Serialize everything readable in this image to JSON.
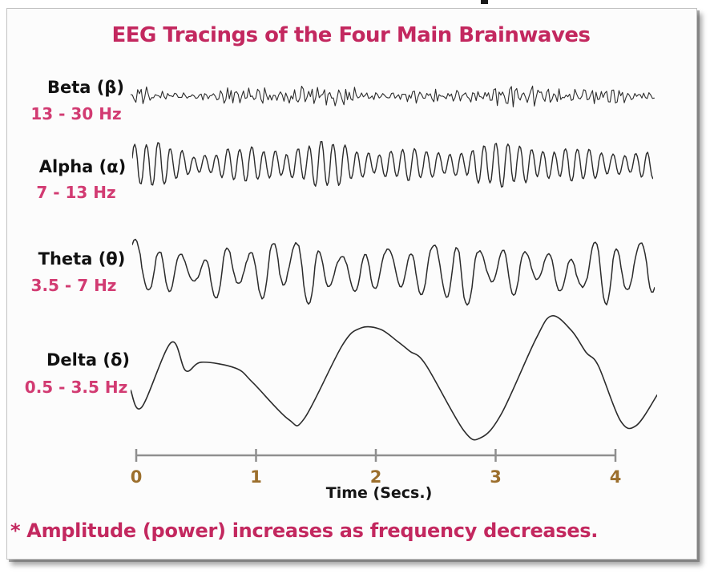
{
  "title": "EEG Tracings of the Four Main Brainwaves",
  "footnote": "* Amplitude (power) increases as frequency decreases.",
  "colors": {
    "accent_pink": "#C3285F",
    "freq_pink": "#D23B72",
    "trace_black": "#2b2b2b",
    "axis_gray": "#8f8f8f",
    "tick_number_brown": "#9C6F2D"
  },
  "chart_data": {
    "type": "line",
    "title": "EEG Tracings of the Four Main Brainwaves",
    "xlabel": "Time (Secs.)",
    "x_range_secs": [
      0,
      4.3
    ],
    "x_ticks": [
      "0",
      "1",
      "2",
      "3",
      "4"
    ],
    "x_tick_values": [
      0,
      1,
      2,
      3,
      4
    ],
    "grid": false,
    "note": "* Amplitude (power) increases as frequency decreases.",
    "series": [
      {
        "id": "beta",
        "label": "Beta (β)",
        "freq_label": "13 - 30 Hz",
        "band_hz": [
          13,
          30
        ],
        "relative_amplitude": 0.13,
        "synthesis": {
          "type": "sinusoids",
          "components": [
            {
              "f": 16.5,
              "a": 0.5,
              "p": 0.3
            },
            {
              "f": 22.8,
              "a": 0.42,
              "p": 1.7
            },
            {
              "f": 28.7,
              "a": 0.3,
              "p": 4.1
            },
            {
              "f": 13.4,
              "a": 0.32,
              "p": 2.6
            },
            {
              "f": 36.5,
              "a": 0.2,
              "p": 0.9
            }
          ],
          "noise": 0.45,
          "envelope": [
            {
              "f": 0.52,
              "a": 0.38,
              "p": 3.3
            },
            {
              "f": 1.3,
              "a": 0.28,
              "p": 0.8
            }
          ],
          "limit": 0.25
        }
      },
      {
        "id": "alpha",
        "label": "Alpha (α)",
        "freq_label": "7 - 13 Hz",
        "band_hz": [
          7,
          13
        ],
        "relative_amplitude": 0.36,
        "synthesis": {
          "type": "sinusoids",
          "components": [
            {
              "f": 10.4,
              "a": 0.82,
              "p": 0.0
            },
            {
              "f": 9.0,
              "a": 0.22,
              "p": 2.0
            },
            {
              "f": 5.1,
              "a": 0.1,
              "p": 1.1
            }
          ],
          "noise": 0.04,
          "envelope": [
            {
              "f": 0.62,
              "a": 0.26,
              "p": 1.9
            },
            {
              "f": 1.45,
              "a": 0.16,
              "p": 0.2
            }
          ],
          "limit": 0.25
        }
      },
      {
        "id": "theta",
        "label": "Theta (θ)",
        "freq_label": "3.5 - 7 Hz",
        "band_hz": [
          3.5,
          7
        ],
        "relative_amplitude": 0.53,
        "synthesis": {
          "type": "sinusoids",
          "components": [
            {
              "f": 5.3,
              "a": 0.8,
              "p": 0.6
            },
            {
              "f": 2.4,
              "a": 0.25,
              "p": 1.3
            },
            {
              "f": 7.8,
              "a": 0.16,
              "p": 2.1
            },
            {
              "f": 1.0,
              "a": 0.1,
              "p": 0.5
            }
          ],
          "noise": 0.05,
          "envelope": [
            {
              "f": 0.72,
              "a": 0.3,
              "p": 2.2
            },
            {
              "f": 1.6,
              "a": 0.18,
              "p": 0.4
            }
          ],
          "limit": 0.3
        }
      },
      {
        "id": "delta",
        "label": "Delta (δ)",
        "freq_label": "0.5 - 3.5 Hz",
        "band_hz": [
          0.5,
          3.5
        ],
        "relative_amplitude": 1.0,
        "synthesis": {
          "type": "keypoints",
          "points": [
            [
              0.0,
              -0.22
            ],
            [
              0.09,
              -0.5
            ],
            [
              0.33,
              0.56
            ],
            [
              0.45,
              0.1
            ],
            [
              0.58,
              0.24
            ],
            [
              0.86,
              0.14
            ],
            [
              1.0,
              -0.1
            ],
            [
              1.29,
              -0.7
            ],
            [
              1.42,
              -0.68
            ],
            [
              1.73,
              0.52
            ],
            [
              1.88,
              0.8
            ],
            [
              2.04,
              0.78
            ],
            [
              2.18,
              0.58
            ],
            [
              2.28,
              0.42
            ],
            [
              2.41,
              0.2
            ],
            [
              2.72,
              -0.88
            ],
            [
              2.86,
              -1.0
            ],
            [
              3.03,
              -0.6
            ],
            [
              3.31,
              0.62
            ],
            [
              3.44,
              1.0
            ],
            [
              3.6,
              0.76
            ],
            [
              3.72,
              0.4
            ],
            [
              3.82,
              0.18
            ],
            [
              4.0,
              -0.72
            ],
            [
              4.13,
              -0.8
            ],
            [
              4.3,
              -0.3
            ]
          ]
        }
      }
    ]
  }
}
